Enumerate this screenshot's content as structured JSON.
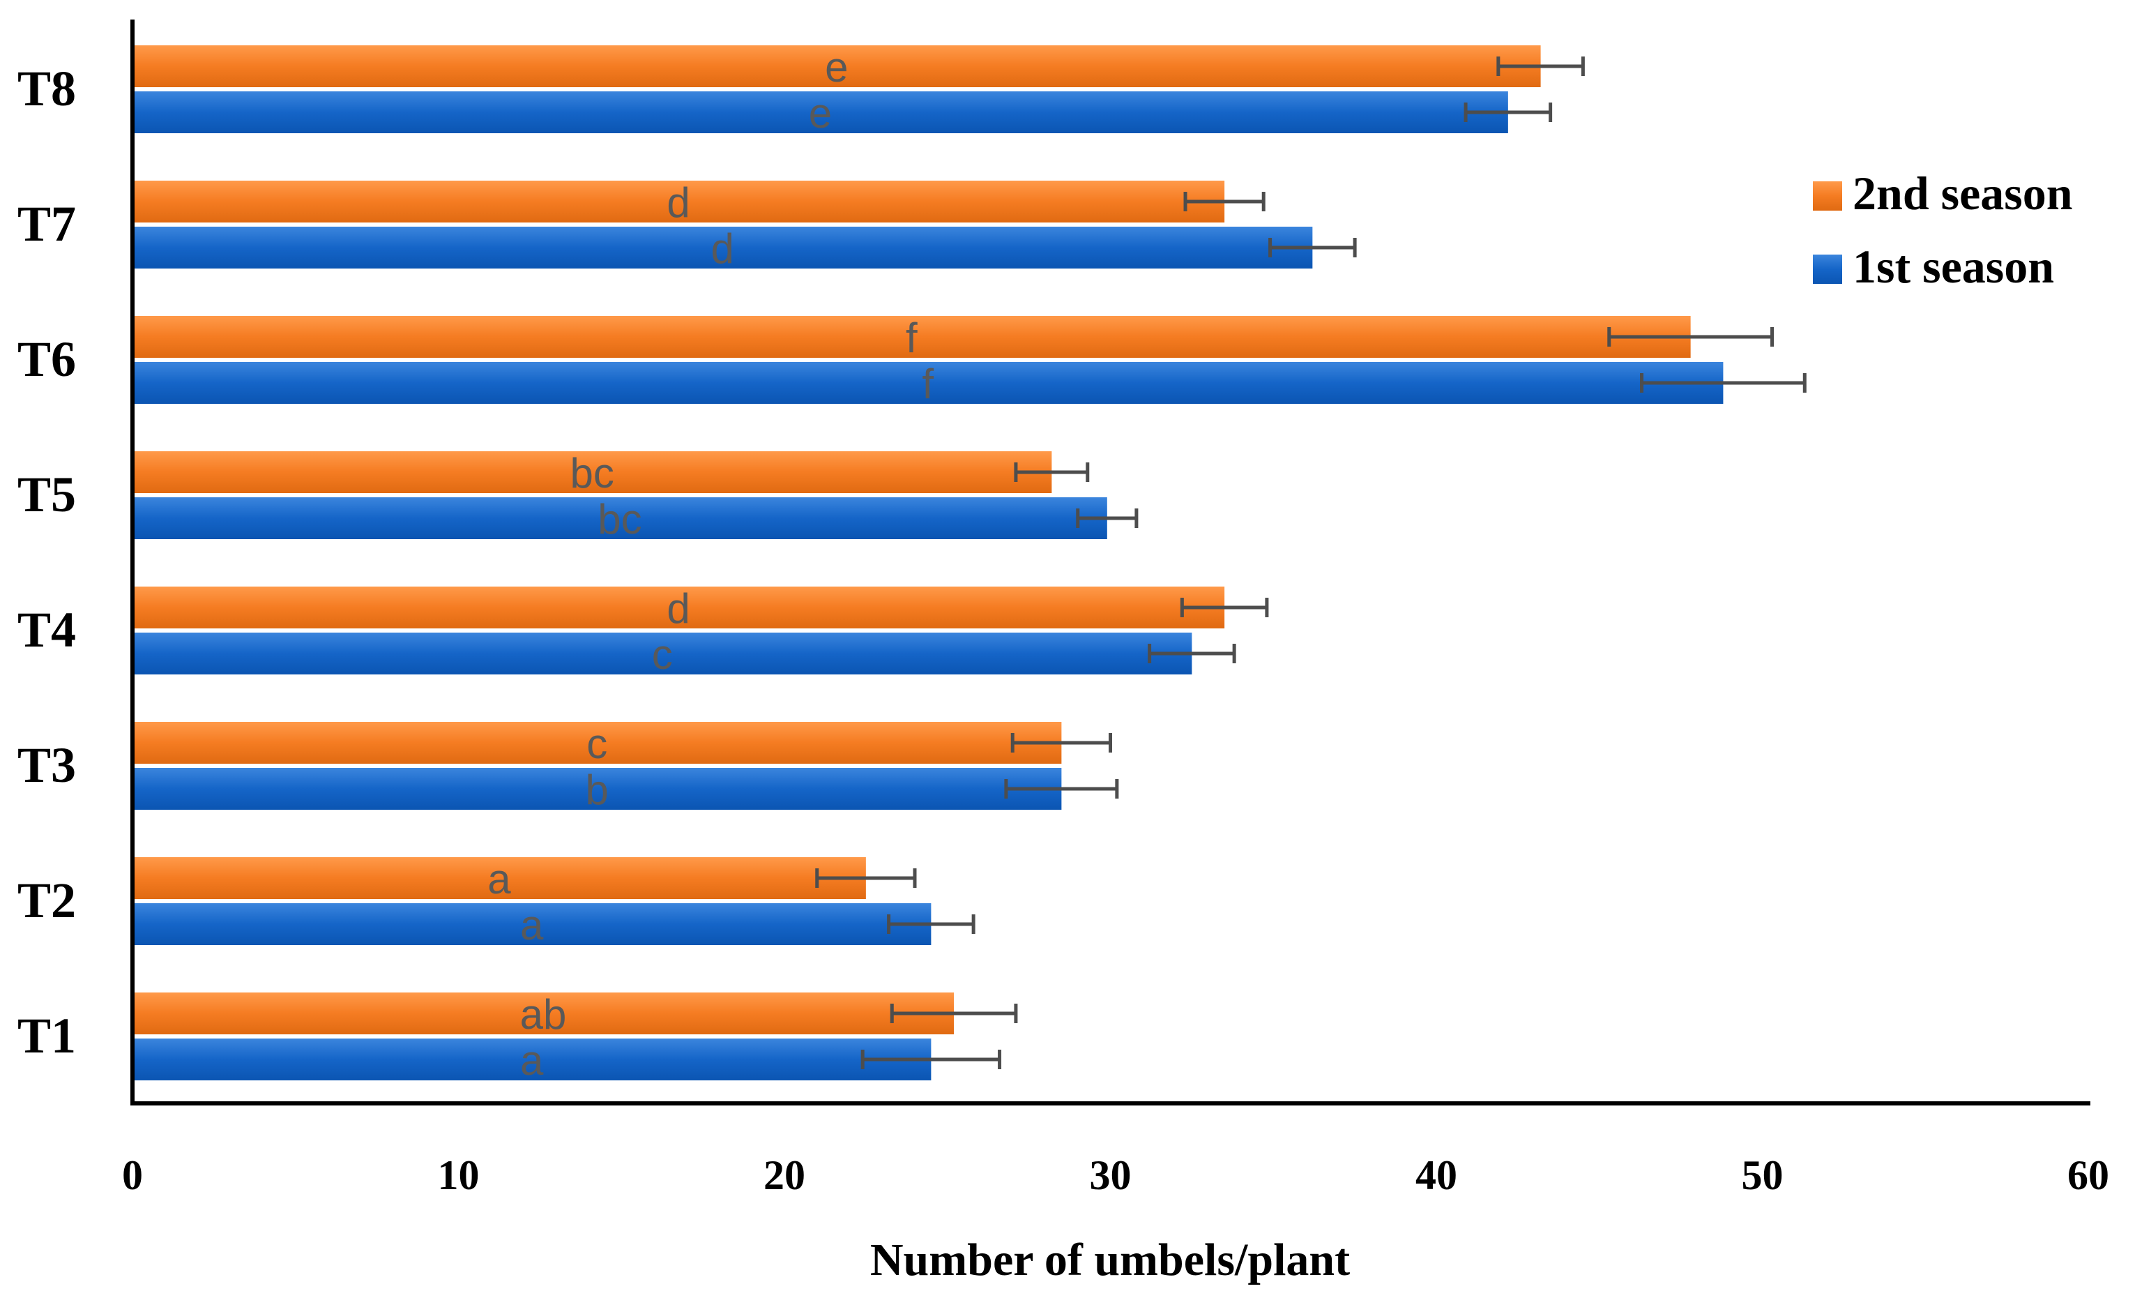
{
  "chart_data": {
    "type": "bar",
    "orientation": "horizontal",
    "title": "",
    "xlabel": "Number of umbels/plant",
    "ylabel": "",
    "xlim": [
      0,
      60
    ],
    "xticks": [
      0,
      10,
      20,
      30,
      40,
      50,
      60
    ],
    "grid": false,
    "legend_position": "right",
    "categories": [
      "T1",
      "T2",
      "T3",
      "T4",
      "T5",
      "T6",
      "T7",
      "T8"
    ],
    "series": [
      {
        "name": "2nd season",
        "color": "#F57C22",
        "values": [
          25.2,
          22.5,
          28.5,
          33.5,
          28.2,
          47.8,
          33.5,
          43.2
        ],
        "errors": [
          1.9,
          1.5,
          1.5,
          1.3,
          1.1,
          2.5,
          1.2,
          1.3
        ],
        "letters": [
          "ab",
          "a",
          "c",
          "d",
          "bc",
          "f",
          "d",
          "e"
        ]
      },
      {
        "name": "1st season",
        "color": "#1565C8",
        "values": [
          24.5,
          24.5,
          28.5,
          32.5,
          29.9,
          48.8,
          36.2,
          42.2
        ],
        "errors": [
          2.1,
          1.3,
          1.7,
          1.3,
          0.9,
          2.5,
          1.3,
          1.3
        ],
        "letters": [
          "a",
          "a",
          "b",
          "c",
          "bc",
          "f",
          "d",
          "e"
        ]
      }
    ]
  }
}
